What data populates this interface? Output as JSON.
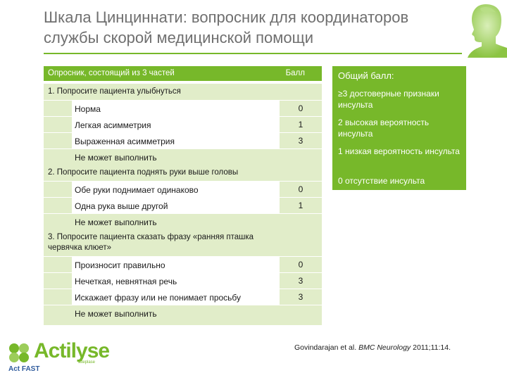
{
  "title": "Шкала Цинциннати: вопросник для координаторов службы скорой медицинской помощи",
  "table": {
    "col1": "Опросник, состоящий из 3 частей",
    "col2": "Балл",
    "sections": [
      {
        "label": "1. Попросите пациента улыбнуться",
        "items": [
          {
            "text": "Норма",
            "score": "0"
          },
          {
            "text": "Легкая асимметрия",
            "score": "1"
          },
          {
            "text": "Выраженная асимметрия",
            "score": "3"
          },
          {
            "text": "Не может выполнить",
            "score": ""
          }
        ]
      },
      {
        "label": "2. Попросите пациента поднять руки выше головы",
        "items": [
          {
            "text": "Обе руки поднимает одинаково",
            "score": "0"
          },
          {
            "text": "Одна рука выше другой",
            "score": "1"
          },
          {
            "text": "Не может выполнить",
            "score": ""
          }
        ]
      },
      {
        "label": "3. Попросите пациента сказать фразу «ранняя пташка червячка клюет»",
        "items": [
          {
            "text": "Произносит правильно",
            "score": "0"
          },
          {
            "text": "Нечеткая, невнятная речь",
            "score": "3"
          },
          {
            "text": "Искажает фразу или не понимает просьбу",
            "score": "3"
          },
          {
            "text": "Не может выполнить",
            "score": ""
          }
        ]
      }
    ]
  },
  "score_box": {
    "title": "Общий балл:",
    "lines": [
      "≥3 достоверные признаки инсульта",
      "2 высокая вероятность инсульта",
      "1 низкая вероятность инсульта",
      "0 отсутствие инсульта"
    ]
  },
  "brand": {
    "name": "Actilyse",
    "sub": "alteplase",
    "tagline": "Act FAST"
  },
  "citation": {
    "authors": "Govindarajan et al. ",
    "journal": "BMC Neurology",
    "ref": " 2011;11:14."
  },
  "colors": {
    "accent": "#77b82a",
    "light": "#e1edc9",
    "title": "#6f6f6f"
  }
}
